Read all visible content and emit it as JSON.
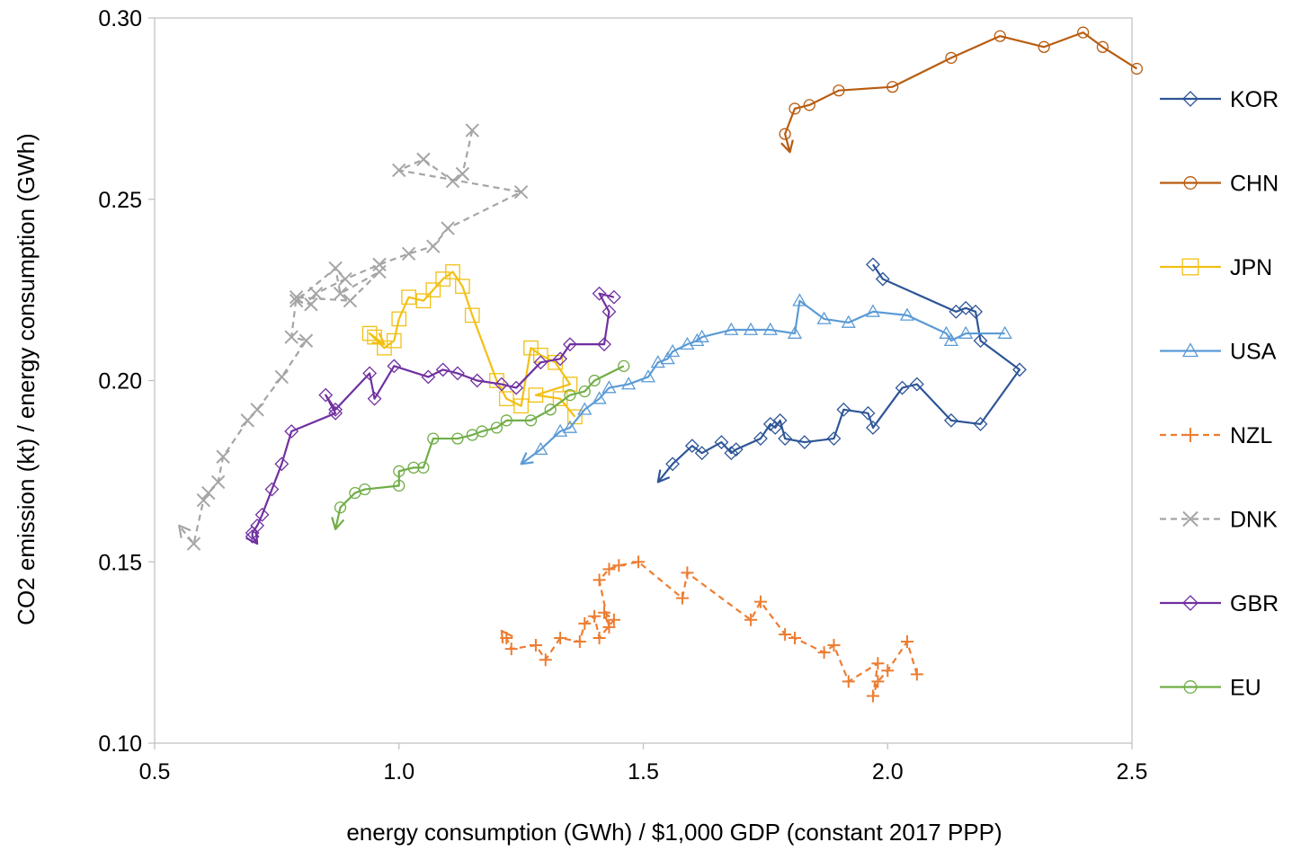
{
  "chart_data": {
    "type": "scatter",
    "xlabel": "energy consumption (GWh) / $1,000 GDP (constant 2017 PPP)",
    "ylabel": "CO2 emission (kt) / energy consumption (GWh)",
    "xlim": [
      0.5,
      2.5
    ],
    "ylim": [
      0.1,
      0.3
    ],
    "xticks": [
      "0.5",
      "1.0",
      "1.5",
      "2.0",
      "2.5"
    ],
    "yticks": [
      "0.10",
      "0.15",
      "0.20",
      "0.25",
      "0.30"
    ],
    "grid": false,
    "legend_position": "right",
    "series": [
      {
        "name": "KOR",
        "color": "#2e5597",
        "marker": "diamond",
        "dash": "solid",
        "x": [
          1.97,
          1.99,
          2.14,
          2.16,
          2.18,
          2.19,
          2.27,
          2.19,
          2.13,
          2.06,
          2.03,
          1.97,
          1.96,
          1.91,
          1.89,
          1.83,
          1.79,
          1.78,
          1.77,
          1.76,
          1.74,
          1.69,
          1.68,
          1.66,
          1.62,
          1.6,
          1.56,
          1.53
        ],
        "y": [
          0.232,
          0.228,
          0.219,
          0.22,
          0.219,
          0.211,
          0.203,
          0.188,
          0.189,
          0.199,
          0.198,
          0.187,
          0.191,
          0.192,
          0.184,
          0.183,
          0.184,
          0.189,
          0.187,
          0.188,
          0.184,
          0.181,
          0.18,
          0.183,
          0.18,
          0.182,
          0.177,
          0.172
        ]
      },
      {
        "name": "CHN",
        "color": "#b85c0f",
        "marker": "circle",
        "dash": "solid",
        "x": [
          2.51,
          2.44,
          2.4,
          2.32,
          2.23,
          2.13,
          2.01,
          1.9,
          1.84,
          1.81,
          1.79,
          1.8
        ],
        "y": [
          0.286,
          0.292,
          0.296,
          0.292,
          0.295,
          0.289,
          0.281,
          0.28,
          0.276,
          0.275,
          0.268,
          0.263
        ]
      },
      {
        "name": "JPN",
        "color": "#f2c014",
        "marker": "square",
        "dash": "solid",
        "x": [
          1.36,
          1.33,
          1.28,
          1.35,
          1.32,
          1.29,
          1.27,
          1.25,
          1.22,
          1.2,
          1.15,
          1.13,
          1.11,
          1.09,
          1.07,
          1.05,
          1.02,
          1.0,
          0.99,
          0.97,
          0.94,
          0.95,
          0.97
        ],
        "y": [
          0.19,
          0.195,
          0.196,
          0.199,
          0.205,
          0.207,
          0.209,
          0.193,
          0.195,
          0.2,
          0.218,
          0.226,
          0.23,
          0.228,
          0.225,
          0.222,
          0.223,
          0.217,
          0.211,
          0.209,
          0.213,
          0.212,
          0.21
        ]
      },
      {
        "name": "USA",
        "color": "#5b9bd5",
        "marker": "triangle",
        "dash": "solid",
        "x": [
          2.24,
          2.16,
          2.13,
          2.12,
          2.04,
          1.97,
          1.92,
          1.87,
          1.82,
          1.81,
          1.76,
          1.72,
          1.68,
          1.62,
          1.61,
          1.59,
          1.56,
          1.55,
          1.53,
          1.51,
          1.47,
          1.43,
          1.41,
          1.38,
          1.35,
          1.33,
          1.29,
          1.25
        ],
        "y": [
          0.213,
          0.213,
          0.211,
          0.213,
          0.218,
          0.219,
          0.216,
          0.217,
          0.222,
          0.213,
          0.214,
          0.214,
          0.214,
          0.212,
          0.211,
          0.21,
          0.208,
          0.206,
          0.205,
          0.201,
          0.199,
          0.198,
          0.195,
          0.192,
          0.187,
          0.186,
          0.181,
          0.177
        ]
      },
      {
        "name": "NZL",
        "color": "#ed7d31",
        "marker": "plus",
        "dash": "dash",
        "x": [
          2.06,
          2.04,
          2.0,
          1.98,
          1.97,
          1.98,
          1.92,
          1.89,
          1.87,
          1.81,
          1.79,
          1.74,
          1.72,
          1.59,
          1.58,
          1.49,
          1.45,
          1.43,
          1.41,
          1.43,
          1.42,
          1.44,
          1.41,
          1.4,
          1.38,
          1.37,
          1.33,
          1.3,
          1.28,
          1.23,
          1.22,
          1.21
        ],
        "y": [
          0.119,
          0.128,
          0.12,
          0.117,
          0.113,
          0.122,
          0.117,
          0.127,
          0.125,
          0.129,
          0.13,
          0.139,
          0.134,
          0.147,
          0.14,
          0.15,
          0.149,
          0.148,
          0.145,
          0.132,
          0.136,
          0.134,
          0.129,
          0.135,
          0.133,
          0.128,
          0.129,
          0.123,
          0.127,
          0.126,
          0.129,
          0.131
        ]
      },
      {
        "name": "DNK",
        "color": "#a5a5a5",
        "marker": "x",
        "dash": "dash",
        "x": [
          1.15,
          1.13,
          1.11,
          1.05,
          1.0,
          1.25,
          1.1,
          1.07,
          1.02,
          0.96,
          0.89,
          0.83,
          0.82,
          0.79,
          0.87,
          0.88,
          0.96,
          0.9,
          0.79,
          0.78,
          0.81,
          0.76,
          0.71,
          0.69,
          0.64,
          0.63,
          0.61,
          0.6,
          0.58,
          0.55
        ],
        "y": [
          0.269,
          0.257,
          0.255,
          0.261,
          0.258,
          0.252,
          0.242,
          0.237,
          0.235,
          0.232,
          0.228,
          0.224,
          0.221,
          0.222,
          0.231,
          0.224,
          0.23,
          0.222,
          0.223,
          0.212,
          0.211,
          0.201,
          0.192,
          0.189,
          0.179,
          0.172,
          0.169,
          0.167,
          0.155,
          0.16
        ]
      },
      {
        "name": "GBR",
        "color": "#7030a0",
        "marker": "diamond",
        "dash": "solid",
        "x": [
          1.44,
          1.41,
          1.43,
          1.42,
          1.35,
          1.33,
          1.29,
          1.24,
          1.21,
          1.16,
          1.12,
          1.09,
          1.06,
          0.99,
          0.95,
          0.94,
          0.87,
          0.85,
          0.87,
          0.78,
          0.76,
          0.74,
          0.72,
          0.71,
          0.7,
          0.7,
          0.71
        ],
        "y": [
          0.223,
          0.224,
          0.219,
          0.21,
          0.21,
          0.206,
          0.205,
          0.198,
          0.199,
          0.2,
          0.202,
          0.203,
          0.201,
          0.204,
          0.195,
          0.202,
          0.192,
          0.196,
          0.191,
          0.186,
          0.177,
          0.17,
          0.163,
          0.16,
          0.158,
          0.157,
          0.155
        ]
      },
      {
        "name": "EU",
        "color": "#70ad47",
        "marker": "circle",
        "dash": "solid",
        "x": [
          1.46,
          1.4,
          1.38,
          1.35,
          1.31,
          1.27,
          1.22,
          1.2,
          1.17,
          1.15,
          1.12,
          1.07,
          1.05,
          1.03,
          1.0,
          1.0,
          0.93,
          0.91,
          0.88,
          0.87
        ],
        "y": [
          0.204,
          0.2,
          0.197,
          0.196,
          0.192,
          0.189,
          0.189,
          0.187,
          0.186,
          0.185,
          0.184,
          0.184,
          0.176,
          0.176,
          0.175,
          0.171,
          0.17,
          0.169,
          0.165,
          0.159
        ]
      }
    ]
  }
}
